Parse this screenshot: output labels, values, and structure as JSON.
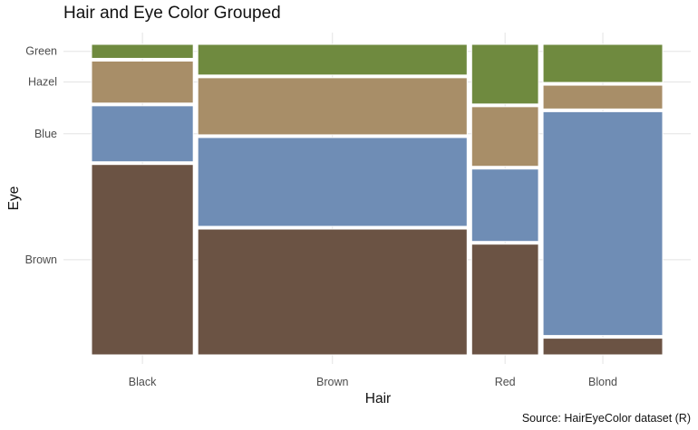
{
  "chart_data": {
    "type": "mosaic",
    "title": "Hair and Eye Color Grouped",
    "caption": "Source: HairEyeColor dataset (R)",
    "xlabel": "Hair",
    "ylabel": "Eye",
    "categories": [
      "Black",
      "Brown",
      "Red",
      "Blond"
    ],
    "y_ticks": [
      "Green",
      "Hazel",
      "Blue",
      "Brown"
    ],
    "grid": true,
    "legend": "none",
    "series": [
      {
        "name": "Brown",
        "color": "#6b5344",
        "values": [
          68,
          119,
          26,
          7
        ]
      },
      {
        "name": "Blue",
        "color": "#6f8db5",
        "values": [
          20,
          84,
          17,
          94
        ]
      },
      {
        "name": "Hazel",
        "color": "#a88e68",
        "values": [
          15,
          54,
          14,
          10
        ]
      },
      {
        "name": "Green",
        "color": "#6f8a3f",
        "values": [
          5,
          29,
          14,
          16
        ]
      }
    ]
  }
}
